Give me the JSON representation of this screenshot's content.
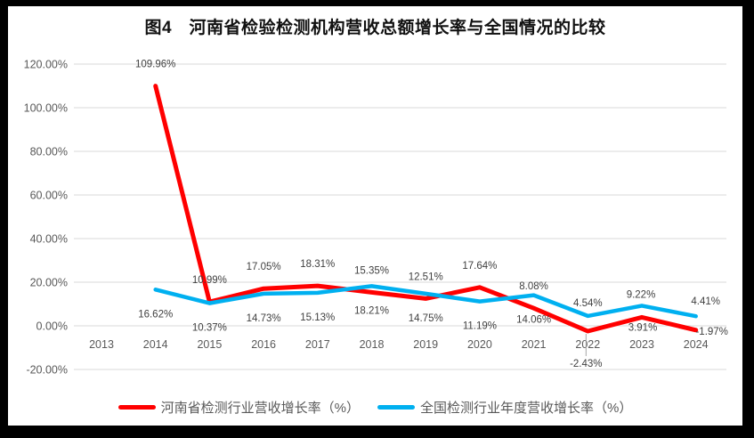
{
  "chart_data": {
    "type": "line",
    "title": "图4　河南省检验检测机构营收总额增长率与全国情况的比较",
    "categories": [
      "2013",
      "2014",
      "2015",
      "2016",
      "2017",
      "2018",
      "2019",
      "2020",
      "2021",
      "2022",
      "2023",
      "2024"
    ],
    "series": [
      {
        "name": "河南省检测行业营收增长率（%）",
        "color": "#FF0000",
        "values": [
          null,
          109.96,
          10.99,
          17.05,
          18.31,
          15.35,
          12.51,
          17.64,
          8.08,
          -2.43,
          3.91,
          -1.97
        ]
      },
      {
        "name": "全国检测行业年度营收增长率（%）",
        "color": "#00B0F0",
        "values": [
          null,
          16.62,
          10.37,
          14.73,
          15.13,
          18.21,
          14.75,
          11.19,
          14.06,
          4.54,
          9.22,
          4.41
        ]
      }
    ],
    "y_axis": {
      "tick_labels": [
        "120.00%",
        "100.00%",
        "80.00%",
        "60.00%",
        "40.00%",
        "20.00%",
        "0.00%",
        "-20.00%"
      ],
      "tick_values": [
        120,
        100,
        80,
        60,
        40,
        20,
        0,
        -20
      ],
      "min": -20,
      "max": 120
    },
    "data_labels": true,
    "grid": true,
    "legend_position": "bottom"
  },
  "colors": {
    "gridline": "#D9D9D9",
    "axis_text": "#595959",
    "data_label_text": "#404040",
    "leader_line": "#A6A6A6",
    "title_text": "#111111",
    "frame_border": "#000000",
    "background": "#FFFFFF"
  }
}
